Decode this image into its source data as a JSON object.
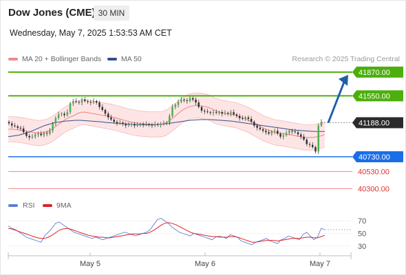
{
  "header": {
    "title": "Dow Jones (CME)",
    "timeframe": "30 MIN",
    "datetime": "Wednesday, May 7, 2025 1:53:53 AM CET"
  },
  "legend": {
    "items": [
      {
        "label": "MA 20 + Bollinger Bands",
        "color": "#f08a8a"
      },
      {
        "label": "MA 50",
        "color": "#2f4f8f"
      }
    ],
    "credit": "Research © 2025 Trading Central"
  },
  "colors": {
    "resistance": "#4caf0c",
    "support_main": "#1a6ee8",
    "support_minor": "#f49a9a",
    "current_label": "#2b2b2b",
    "arrow": "#1f5fa8",
    "candle_up": "#4caf50",
    "candle_down": "#333333",
    "band_fill": "#fde0e0",
    "rsi_line": "#5b7fd6",
    "rsi_ma": "#e02020"
  },
  "chart_data": [
    {
      "type": "candlestick",
      "x_ticks": [
        "May 5",
        "May 6",
        "May 7"
      ],
      "current_price": 41188.0,
      "current_label": "41188.00",
      "levels": [
        {
          "value": 41870.0,
          "label": "41870.00",
          "kind": "resistance"
        },
        {
          "value": 41550.0,
          "label": "41550.00",
          "kind": "resistance"
        },
        {
          "value": 40730.0,
          "label": "40730.00",
          "kind": "support_main"
        },
        {
          "value": 40530.0,
          "label": "40530.00",
          "kind": "support_minor"
        },
        {
          "value": 40300.0,
          "label": "40300.00",
          "kind": "support_minor"
        }
      ],
      "forecast_target": 41870.0,
      "series": {
        "close": [
          41180,
          41150,
          41140,
          41120,
          41110,
          41060,
          41010,
          40990,
          41000,
          41030,
          41040,
          41020,
          41050,
          41040,
          41080,
          41180,
          41250,
          41300,
          41310,
          41290,
          41330,
          41450,
          41480,
          41470,
          41460,
          41500,
          41480,
          41470,
          41460,
          41480,
          41460,
          41400,
          41360,
          41310,
          41260,
          41230,
          41200,
          41180,
          41190,
          41170,
          41150,
          41160,
          41170,
          41150,
          41160,
          41170,
          41160,
          41170,
          41160,
          41150,
          41170,
          41160,
          41170,
          41180,
          41190,
          41280,
          41400,
          41430,
          41470,
          41500,
          41490,
          41480,
          41520,
          41500,
          41460,
          41400,
          41350,
          41340,
          41330,
          41320,
          41330,
          41320,
          41330,
          41310,
          41320,
          41310,
          41330,
          41300,
          41280,
          41250,
          41240,
          41260,
          41240,
          41200,
          41150,
          41120,
          41100,
          41080,
          41060,
          41040,
          41070,
          41080,
          41040,
          41000,
          41020,
          41050,
          41080,
          41070,
          41060,
          41030,
          41000,
          40960,
          40900,
          40890,
          40860,
          40800,
          41150,
          41200
        ]
      },
      "ma20": [
        41100,
        41100,
        41095,
        41090,
        41080,
        41070,
        41060,
        41050,
        41050,
        41060,
        41080,
        41110,
        41150,
        41190,
        41230,
        41260,
        41280,
        41310,
        41330,
        41330,
        41320,
        41310,
        41300,
        41290,
        41280,
        41270,
        41260,
        41245,
        41230,
        41215,
        41200,
        41190,
        41180,
        41175,
        41170,
        41165,
        41165,
        41165,
        41170,
        41190,
        41230,
        41270,
        41320,
        41360,
        41390,
        41410,
        41420,
        41420,
        41410,
        41400,
        41380,
        41350,
        41330,
        41320,
        41310,
        41300,
        41290,
        41270,
        41250,
        41230,
        41200,
        41170,
        41140,
        41110,
        41090,
        41070,
        41055,
        41050,
        41040,
        41030,
        41020,
        41010,
        41000,
        40990,
        40990,
        40990,
        41000,
        41010,
        41030
      ],
      "ma50": [
        41000,
        41010,
        41020,
        41040,
        41060,
        41090,
        41120,
        41150,
        41170,
        41190,
        41200,
        41210,
        41215,
        41220,
        41220,
        41215,
        41210,
        41205,
        41200,
        41190,
        41185,
        41180,
        41175,
        41170,
        41165,
        41160,
        41160,
        41160,
        41160,
        41165,
        41170,
        41180,
        41190,
        41200,
        41210,
        41220,
        41225,
        41230,
        41230,
        41230,
        41225,
        41220,
        41215,
        41210,
        41200,
        41190,
        41180,
        41170,
        41160,
        41150,
        41140,
        41130,
        41120,
        41110,
        41100,
        41090,
        41085,
        41080,
        41075,
        41070,
        41070,
        41070
      ],
      "y_range": [
        40220,
        41980
      ],
      "bb_width": 170
    },
    {
      "type": "line",
      "name": "RSI",
      "legend": [
        {
          "label": "RSI",
          "color": "#5b7fd6"
        },
        {
          "label": "9MA",
          "color": "#e02020"
        }
      ],
      "y_ticks": [
        "70",
        "50",
        "30"
      ],
      "y_range": [
        20,
        80
      ],
      "rsi": [
        62,
        58,
        56,
        52,
        48,
        44,
        42,
        40,
        38,
        36,
        46,
        52,
        58,
        66,
        68,
        64,
        60,
        56,
        52,
        50,
        48,
        46,
        44,
        42,
        44,
        42,
        40,
        42,
        44,
        46,
        48,
        50,
        52,
        50,
        48,
        46,
        48,
        50,
        52,
        56,
        64,
        72,
        74,
        70,
        66,
        60,
        56,
        52,
        50,
        48,
        46,
        50,
        48,
        46,
        44,
        42,
        40,
        44,
        46,
        44,
        42,
        48,
        46,
        44,
        38,
        36,
        34,
        32,
        36,
        38,
        40,
        42,
        38,
        36,
        34,
        40,
        42,
        46,
        44,
        42,
        40,
        48,
        52,
        46,
        40,
        44,
        58,
        56
      ],
      "rsi_ma": [
        58,
        57,
        55,
        53,
        51,
        49,
        47,
        45,
        43,
        42,
        42,
        44,
        47,
        51,
        55,
        57,
        58,
        57,
        55,
        53,
        51,
        49,
        47,
        46,
        45,
        44,
        44,
        43,
        43,
        44,
        45,
        46,
        47,
        48,
        49,
        49,
        49,
        50,
        50,
        52,
        55,
        59,
        63,
        66,
        67,
        66,
        64,
        61,
        58,
        55,
        52,
        50,
        49,
        48,
        47,
        46,
        45,
        45,
        44,
        44,
        44,
        45,
        45,
        44,
        42,
        40,
        38,
        36,
        36,
        37,
        38,
        39,
        39,
        39,
        38,
        39,
        40,
        41,
        42,
        42,
        42,
        43,
        44,
        44,
        43,
        43,
        45,
        47
      ]
    }
  ]
}
